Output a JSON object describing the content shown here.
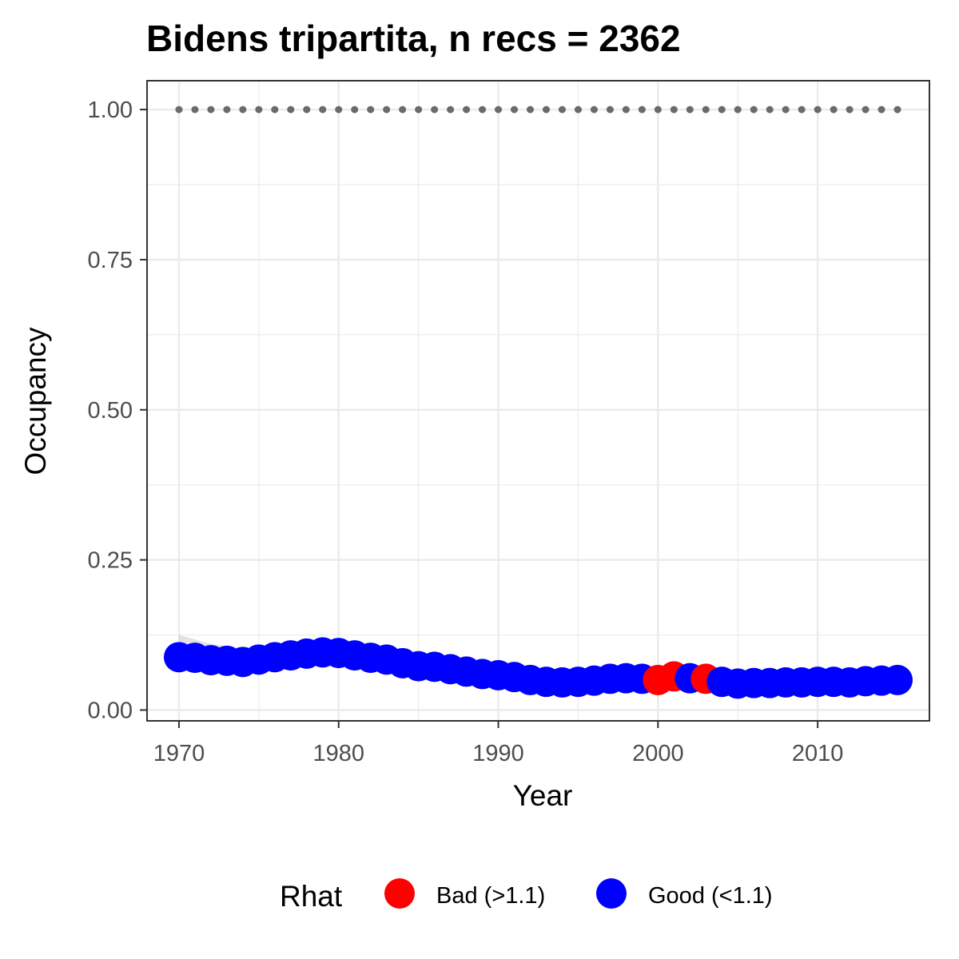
{
  "chart_data": {
    "type": "scatter",
    "title": "Bidens tripartita, n recs = 2362",
    "xlabel": "Year",
    "ylabel": "Occupancy",
    "xlim": [
      1968,
      2017
    ],
    "ylim": [
      -0.018,
      1.048
    ],
    "x_ticks": [
      1970,
      1980,
      1990,
      2000,
      2010
    ],
    "x_tick_labels": [
      "1970",
      "1980",
      "1990",
      "2000",
      "2010"
    ],
    "y_ticks": [
      0,
      0.25,
      0.5,
      0.75,
      1
    ],
    "y_tick_labels": [
      "0.00",
      "0.25",
      "0.50",
      "0.75",
      "1.00"
    ],
    "grid": true,
    "legend": {
      "title": "Rhat",
      "position": "bottom",
      "entries": [
        {
          "label": "Bad (>1.1)",
          "color": "#ff0000"
        },
        {
          "label": "Good (<1.1)",
          "color": "#0000ff"
        }
      ]
    },
    "colors": {
      "bad": "#ff0000",
      "good": "#0000ff",
      "ribbon": "#bebebe",
      "reference": "#6b6b6b"
    },
    "reference_line": {
      "y": 1.0,
      "style": "dotted",
      "x_range": [
        1970,
        2015
      ]
    },
    "ribbon": {
      "x": [
        1970,
        1972,
        1974,
        1976,
        1978,
        1980,
        1982,
        1984,
        1986,
        1988,
        1990,
        1992,
        1994,
        1996,
        1998,
        2000,
        2002,
        2004,
        2006,
        2008,
        2010,
        2012,
        2015
      ],
      "lower": [
        0.075,
        0.072,
        0.07,
        0.075,
        0.082,
        0.084,
        0.078,
        0.068,
        0.06,
        0.054,
        0.05,
        0.045,
        0.042,
        0.043,
        0.045,
        0.045,
        0.045,
        0.042,
        0.04,
        0.04,
        0.041,
        0.041,
        0.043
      ],
      "upper": [
        0.125,
        0.11,
        0.102,
        0.105,
        0.112,
        0.11,
        0.1,
        0.09,
        0.08,
        0.072,
        0.067,
        0.06,
        0.056,
        0.057,
        0.06,
        0.062,
        0.064,
        0.06,
        0.056,
        0.056,
        0.057,
        0.057,
        0.06
      ]
    },
    "series": [
      {
        "name": "Occupancy",
        "x": [
          1970,
          1971,
          1972,
          1973,
          1974,
          1975,
          1976,
          1977,
          1978,
          1979,
          1980,
          1981,
          1982,
          1983,
          1984,
          1985,
          1986,
          1987,
          1988,
          1989,
          1990,
          1991,
          1992,
          1993,
          1994,
          1995,
          1996,
          1997,
          1998,
          1999,
          2000,
          2001,
          2002,
          2003,
          2004,
          2005,
          2006,
          2007,
          2008,
          2009,
          2010,
          2011,
          2012,
          2013,
          2014,
          2015
        ],
        "y": [
          0.088,
          0.087,
          0.083,
          0.082,
          0.08,
          0.084,
          0.088,
          0.091,
          0.094,
          0.096,
          0.095,
          0.091,
          0.087,
          0.084,
          0.078,
          0.073,
          0.072,
          0.068,
          0.064,
          0.06,
          0.058,
          0.055,
          0.05,
          0.047,
          0.046,
          0.047,
          0.049,
          0.052,
          0.053,
          0.052,
          0.05,
          0.056,
          0.053,
          0.052,
          0.047,
          0.044,
          0.045,
          0.045,
          0.046,
          0.046,
          0.047,
          0.047,
          0.046,
          0.048,
          0.049,
          0.05
        ],
        "rhat": [
          "good",
          "good",
          "good",
          "good",
          "good",
          "good",
          "good",
          "good",
          "good",
          "good",
          "good",
          "good",
          "good",
          "good",
          "good",
          "good",
          "good",
          "good",
          "good",
          "good",
          "good",
          "good",
          "good",
          "good",
          "good",
          "good",
          "good",
          "good",
          "good",
          "good",
          "bad",
          "bad",
          "good",
          "bad",
          "good",
          "good",
          "good",
          "good",
          "good",
          "good",
          "good",
          "good",
          "good",
          "good",
          "good",
          "good"
        ]
      }
    ]
  }
}
